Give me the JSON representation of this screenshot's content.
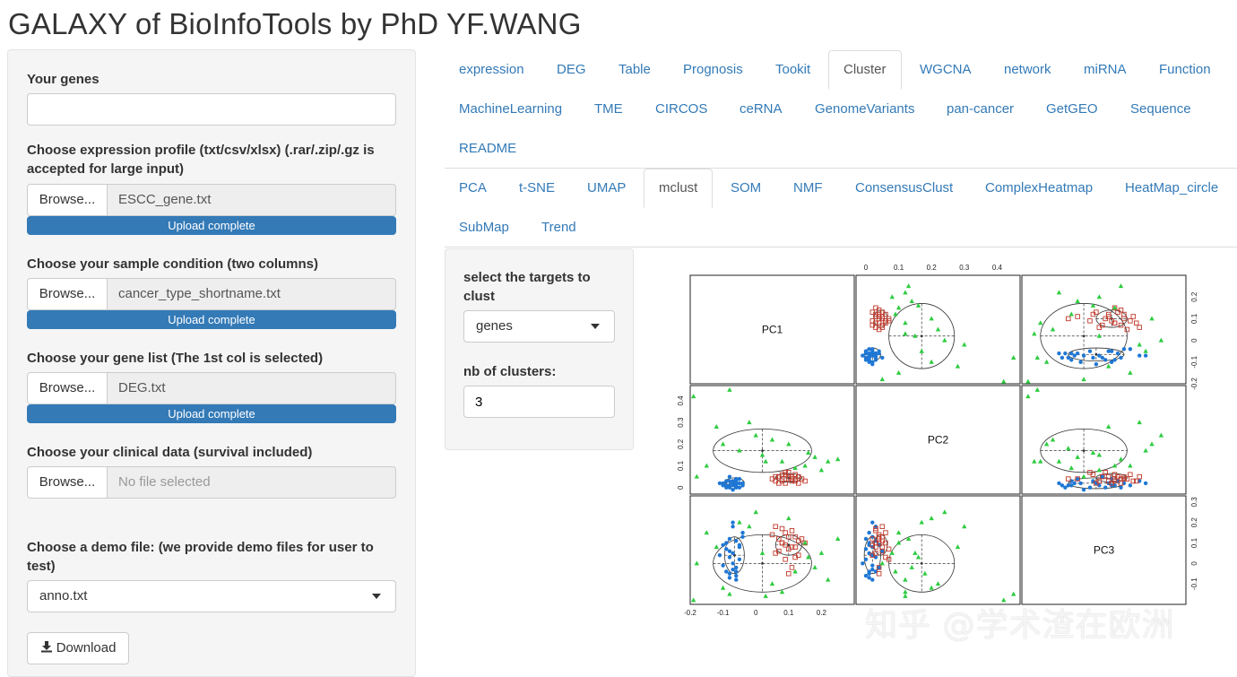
{
  "app": {
    "title": "GALAXY of BioInfoTools by PhD YF.WANG"
  },
  "sidebar": {
    "genes": {
      "label": "Your genes",
      "value": ""
    },
    "expression": {
      "label": "Choose expression profile (txt/csv/xlsx) (.rar/.zip/.gz is accepted for large input)",
      "browse": "Browse...",
      "file": "ESCC_gene.txt",
      "status": "Upload complete",
      "progress": 1.0
    },
    "condition": {
      "label": "Choose your sample condition (two columns)",
      "browse": "Browse...",
      "file": "cancer_type_shortname.txt",
      "status": "Upload complete",
      "progress": 1.0
    },
    "genelist": {
      "label": "Choose your gene list (The 1st col is selected)",
      "browse": "Browse...",
      "file": "DEG.txt",
      "status": "Upload complete",
      "progress": 1.0
    },
    "clinical": {
      "label": "Choose your clinical data (survival included)",
      "browse": "Browse...",
      "file": "No file selected"
    },
    "demo": {
      "label": "Choose a demo file: (we provide demo files for user to test)",
      "selected": "anno.txt"
    },
    "download_label": "Download"
  },
  "main_tabs": {
    "row1": [
      "expression",
      "DEG",
      "Table",
      "Prognosis",
      "Tookit",
      "Cluster",
      "WGCNA",
      "network",
      "miRNA",
      "Function"
    ],
    "row2": [
      "MachineLearning",
      "TME",
      "CIRCOS",
      "ceRNA",
      "GenomeVariants",
      "pan-cancer",
      "GetGEO",
      "Sequence"
    ],
    "row3": [
      "README"
    ],
    "active": "Cluster"
  },
  "cluster_tabs": {
    "row1": [
      "PCA",
      "t-SNE",
      "UMAP",
      "mclust",
      "SOM",
      "NMF",
      "ConsensusClust",
      "ComplexHeatmap",
      "HeatMap_circle"
    ],
    "row2": [
      "SubMap",
      "Trend"
    ],
    "active": "mclust"
  },
  "mclust": {
    "target_label": "select the targets to clust",
    "target_value": "genes",
    "nclusters_label": "nb of clusters:",
    "nclusters_value": "3"
  },
  "chart_data": {
    "type": "scatter",
    "variables": [
      "PC1",
      "PC2",
      "PC3"
    ],
    "axes": {
      "PC1": {
        "ticks": [
          -0.2,
          -0.1,
          0.0,
          0.1,
          0.2
        ],
        "range": [
          -0.2,
          0.3
        ]
      },
      "PC2": {
        "ticks": [
          0.0,
          0.1,
          0.2,
          0.3,
          0.4
        ],
        "range": [
          -0.03,
          0.47
        ]
      },
      "PC3": {
        "ticks": [
          -0.1,
          0.0,
          0.1,
          0.2,
          0.3
        ],
        "range": [
          -0.2,
          0.33
        ]
      }
    },
    "series": [
      {
        "marker": "circle",
        "color": "#1f77d4",
        "points": [
          [
            -0.08,
            0.01,
            -0.05
          ],
          [
            -0.07,
            0.02,
            -0.03
          ],
          [
            -0.06,
            0.0,
            -0.06
          ],
          [
            -0.09,
            0.03,
            -0.04
          ],
          [
            -0.07,
            0.01,
            0.05
          ],
          [
            -0.05,
            0.02,
            0.08
          ],
          [
            -0.08,
            0.0,
            0.12
          ],
          [
            -0.06,
            0.04,
            -0.02
          ],
          [
            -0.1,
            0.02,
            -0.01
          ],
          [
            -0.04,
            0.01,
            0.15
          ],
          [
            -0.07,
            0.03,
            0.18
          ],
          [
            -0.09,
            0.01,
            0.1
          ],
          [
            -0.06,
            0.02,
            -0.08
          ],
          [
            -0.05,
            0.0,
            0.02
          ],
          [
            -0.08,
            0.05,
            0.06
          ],
          [
            -0.07,
            -0.01,
            0.0
          ],
          [
            -0.11,
            0.02,
            0.04
          ],
          [
            -0.06,
            0.03,
            0.11
          ],
          [
            -0.04,
            0.02,
            0.13
          ],
          [
            -0.08,
            0.01,
            -0.07
          ],
          [
            -0.05,
            0.04,
            0.09
          ],
          [
            -0.09,
            0.0,
            0.07
          ],
          [
            -0.07,
            0.02,
            0.2
          ],
          [
            -0.06,
            0.01,
            -0.04
          ],
          [
            -0.08,
            0.03,
            0.03
          ],
          [
            -0.1,
            0.01,
            0.09
          ]
        ]
      },
      {
        "marker": "square",
        "color": "#c0392b",
        "points": [
          [
            0.06,
            0.03,
            0.05
          ],
          [
            0.08,
            0.04,
            0.1
          ],
          [
            0.1,
            0.05,
            0.13
          ],
          [
            0.12,
            0.03,
            0.08
          ],
          [
            0.09,
            0.06,
            0.15
          ],
          [
            0.11,
            0.04,
            -0.02
          ],
          [
            0.07,
            0.02,
            0.12
          ],
          [
            0.13,
            0.05,
            0.11
          ],
          [
            0.08,
            0.03,
            0.17
          ],
          [
            0.1,
            0.07,
            0.07
          ],
          [
            0.05,
            0.04,
            0.14
          ],
          [
            0.12,
            0.06,
            0.03
          ],
          [
            0.09,
            0.02,
            0.09
          ],
          [
            0.14,
            0.04,
            0.12
          ],
          [
            0.07,
            0.05,
            0.06
          ],
          [
            0.11,
            0.03,
            0.16
          ],
          [
            0.1,
            0.04,
            -0.05
          ],
          [
            0.08,
            0.06,
            0.1
          ],
          [
            0.13,
            0.02,
            0.04
          ],
          [
            0.06,
            0.05,
            0.18
          ],
          [
            0.12,
            0.04,
            0.13
          ],
          [
            0.09,
            0.07,
            0.02
          ],
          [
            0.11,
            0.05,
            0.08
          ],
          [
            0.15,
            0.03,
            0.1
          ]
        ]
      },
      {
        "marker": "triangle",
        "color": "#2ecc40",
        "points": [
          [
            -0.19,
            0.42,
            -0.18
          ],
          [
            -0.12,
            0.28,
            0.08
          ],
          [
            -0.1,
            0.2,
            -0.12
          ],
          [
            -0.05,
            0.17,
            0.2
          ],
          [
            0.0,
            0.24,
            0.25
          ],
          [
            0.02,
            0.15,
            0.05
          ],
          [
            -0.2,
            0.18,
            -0.05
          ],
          [
            -0.15,
            0.1,
            0.15
          ],
          [
            0.05,
            0.22,
            -0.1
          ],
          [
            0.08,
            0.12,
            -0.14
          ],
          [
            0.15,
            0.1,
            0.1
          ],
          [
            0.18,
            0.14,
            -0.02
          ],
          [
            0.22,
            0.12,
            -0.08
          ],
          [
            -0.08,
            0.45,
            -0.15
          ],
          [
            0.1,
            0.2,
            0.22
          ],
          [
            0.25,
            0.13,
            0.12
          ],
          [
            -0.02,
            0.3,
            0.18
          ],
          [
            0.12,
            0.09,
            -0.04
          ],
          [
            0.2,
            0.08,
            0.05
          ],
          [
            -0.18,
            0.05,
            0.0
          ],
          [
            0.03,
            0.12,
            -0.16
          ],
          [
            0.16,
            0.16,
            0.03
          ]
        ]
      }
    ],
    "ellipses": [
      {
        "center": [
          -0.065,
          0.02,
          0.04
        ],
        "radii": [
          0.03,
          0.025,
          0.09
        ],
        "color": "#333"
      },
      {
        "center": [
          0.1,
          0.045,
          0.09
        ],
        "radii": [
          0.04,
          0.02,
          0.05
        ],
        "color": "#333"
      },
      {
        "center": [
          0.02,
          0.17,
          0.0
        ],
        "radii": [
          0.15,
          0.1,
          0.14
        ],
        "color": "#333"
      }
    ]
  },
  "watermark": "知乎 @学术渣在欧洲"
}
